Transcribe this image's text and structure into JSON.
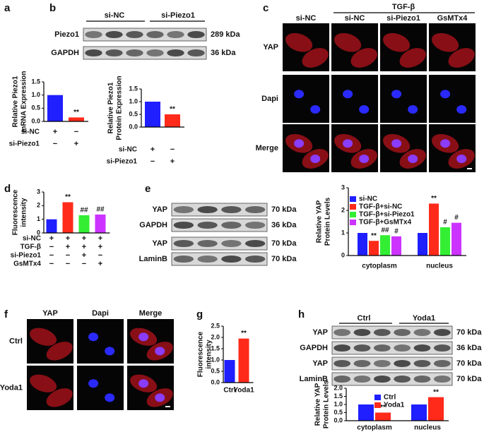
{
  "panel_labels": [
    "a",
    "b",
    "c",
    "d",
    "e",
    "f",
    "g",
    "h"
  ],
  "blots": [
    {
      "groups": [
        "si-NC",
        "si-Piezo1"
      ],
      "rows": [
        {
          "label": "Piezo1",
          "size": "289 kDa"
        },
        {
          "label": "GAPDH",
          "size": "36 kDa"
        }
      ]
    },
    {
      "rows": [
        {
          "label": "YAP",
          "size": "70 kDa"
        },
        {
          "label": "GAPDH",
          "size": "36 kDa"
        },
        {
          "label": "YAP",
          "size": "70 kDa"
        },
        {
          "label": "LaminB",
          "size": "70 kDa"
        }
      ]
    },
    {
      "groups": [
        "Ctrl",
        "Yoda1"
      ],
      "rows": [
        {
          "label": "YAP",
          "size": "70 kDa"
        },
        {
          "label": "GAPDH",
          "size": "36 kDa"
        },
        {
          "label": "YAP",
          "size": "70 kDa"
        },
        {
          "label": "LaminB",
          "size": "70 kDa"
        }
      ]
    }
  ],
  "micrographs": [
    {
      "header": "TGF-β",
      "columns": [
        "si-NC",
        "si-NC",
        "si-Piezo1",
        "GsMTx4"
      ],
      "rows": [
        "YAP",
        "Dapi",
        "Merge"
      ]
    },
    {
      "columns": [
        "YAP",
        "Dapi",
        "Merge"
      ],
      "rows": [
        "Ctrl",
        "Yoda1"
      ]
    }
  ],
  "chart_data": [
    {
      "type": "bar",
      "ylabel": [
        "Relative Piezo1",
        "mRNA Expression"
      ],
      "values": [
        1.0,
        0.15
      ],
      "colors": [
        "#1f1fff",
        "#ff2a1a"
      ],
      "ylim": [
        0,
        1.5
      ],
      "yticks": [
        {
          "value": 0,
          "label": "0.0"
        },
        0.5,
        {
          "value": 1,
          "label": "1.0"
        },
        1.5
      ],
      "annotations": [
        {
          "bar": 1,
          "text": "**"
        }
      ],
      "conditions": [
        {
          "label": "si-NC",
          "marks": [
            "+",
            "−"
          ]
        },
        {
          "label": "si-Piezo1",
          "marks": [
            "−",
            "+"
          ]
        }
      ]
    },
    {
      "type": "bar",
      "ylabel": [
        "Relative Piezo1",
        "Protein Expression"
      ],
      "values": [
        1.0,
        0.5
      ],
      "colors": [
        "#1f1fff",
        "#ff2a1a"
      ],
      "ylim": [
        0,
        1.5
      ],
      "yticks": [
        {
          "value": 0,
          "label": "0.0"
        },
        0.5,
        {
          "value": 1,
          "label": "1.0"
        },
        1.5
      ],
      "annotations": [
        {
          "bar": 1,
          "text": "**"
        }
      ],
      "conditions": [
        {
          "label": "si-NC",
          "marks": [
            "+",
            "−"
          ]
        },
        {
          "label": "si-Piezo1",
          "marks": [
            "−",
            "+"
          ]
        }
      ]
    },
    {
      "type": "bar",
      "ylabel": [
        "Fluorescence",
        "intensity"
      ],
      "values": [
        1.0,
        2.25,
        1.3,
        1.35
      ],
      "colors": [
        "#1f1fff",
        "#ff2a1a",
        "#33ee33",
        "#cc33ff"
      ],
      "ylim": [
        0,
        3
      ],
      "yticks": [
        0,
        1,
        2,
        3
      ],
      "annotations": [
        {
          "bar": 1,
          "text": "**"
        },
        {
          "bar": 2,
          "text": "##"
        },
        {
          "bar": 3,
          "text": "##"
        }
      ],
      "conditions": [
        {
          "label": "si-NC",
          "marks": [
            "+",
            "+",
            "+",
            "+"
          ]
        },
        {
          "label": "TGF-β",
          "marks": [
            "−",
            "+",
            "+",
            "+"
          ]
        },
        {
          "label": "si-Piezo1",
          "marks": [
            "−",
            "−",
            "+",
            "−"
          ]
        },
        {
          "label": "GsMTx4",
          "marks": [
            "−",
            "−",
            "−",
            "+"
          ]
        }
      ]
    },
    {
      "type": "bar",
      "ylabel": [
        "Relative YAP",
        "Protein Levels"
      ],
      "categories": [
        "cytoplasm",
        "nucleus"
      ],
      "series": [
        {
          "name": "si-NC",
          "color": "#1f1fff",
          "values": [
            1.0,
            1.0
          ]
        },
        {
          "name": "TGF-β+si-NC",
          "color": "#ff2a1a",
          "values": [
            0.65,
            2.3
          ]
        },
        {
          "name": "TGF-β+si-Piezo1",
          "color": "#33ee33",
          "values": [
            0.9,
            1.25
          ]
        },
        {
          "name": "TGF-β+GsMTx4",
          "color": "#cc33ff",
          "values": [
            0.85,
            1.45
          ]
        }
      ],
      "ylim": [
        0,
        3
      ],
      "yticks": [
        0,
        1,
        2,
        3
      ],
      "legend": "top-left",
      "annotations": [
        {
          "series": 1,
          "bar": 0,
          "text": "**"
        },
        {
          "series": 2,
          "bar": 0,
          "text": "##"
        },
        {
          "series": 3,
          "bar": 0,
          "text": "#"
        },
        {
          "series": 1,
          "bar": 1,
          "text": "**"
        },
        {
          "series": 2,
          "bar": 1,
          "text": "#"
        },
        {
          "series": 3,
          "bar": 1,
          "text": "#"
        }
      ]
    },
    {
      "type": "bar",
      "ylabel": [
        "Fluorescence",
        "intensity"
      ],
      "categories": [
        "Ctrl",
        "Yoda1"
      ],
      "values": [
        1.0,
        1.95
      ],
      "colors": [
        "#1f1fff",
        "#ff2a1a"
      ],
      "ylim": [
        0,
        2.5
      ],
      "yticks": [
        {
          "value": 0,
          "label": "0.0"
        },
        0.5,
        {
          "value": 1,
          "label": "1.0"
        },
        1.5,
        {
          "value": 2,
          "label": "2.0"
        },
        2.5
      ],
      "annotations": [
        {
          "bar": 1,
          "text": "**"
        }
      ]
    },
    {
      "type": "bar",
      "ylabel": [
        "Relative YAP",
        "Protein Levels"
      ],
      "categories": [
        "cytoplasm",
        "nucleus"
      ],
      "series": [
        {
          "name": "Ctrl",
          "color": "#1f1fff",
          "values": [
            1.0,
            1.0
          ]
        },
        {
          "name": "Yoda1",
          "color": "#ff2a1a",
          "values": [
            0.5,
            1.45
          ]
        }
      ],
      "ylim": [
        0,
        2
      ],
      "yticks": [
        {
          "value": 0,
          "label": "0.0"
        },
        0.5,
        {
          "value": 1,
          "label": "1.0"
        },
        1.5,
        {
          "value": 2,
          "label": "2.0"
        }
      ],
      "legend": "top",
      "annotations": [
        {
          "series": 1,
          "bar": 0,
          "text": "**"
        },
        {
          "series": 1,
          "bar": 1,
          "text": "**"
        }
      ]
    }
  ]
}
